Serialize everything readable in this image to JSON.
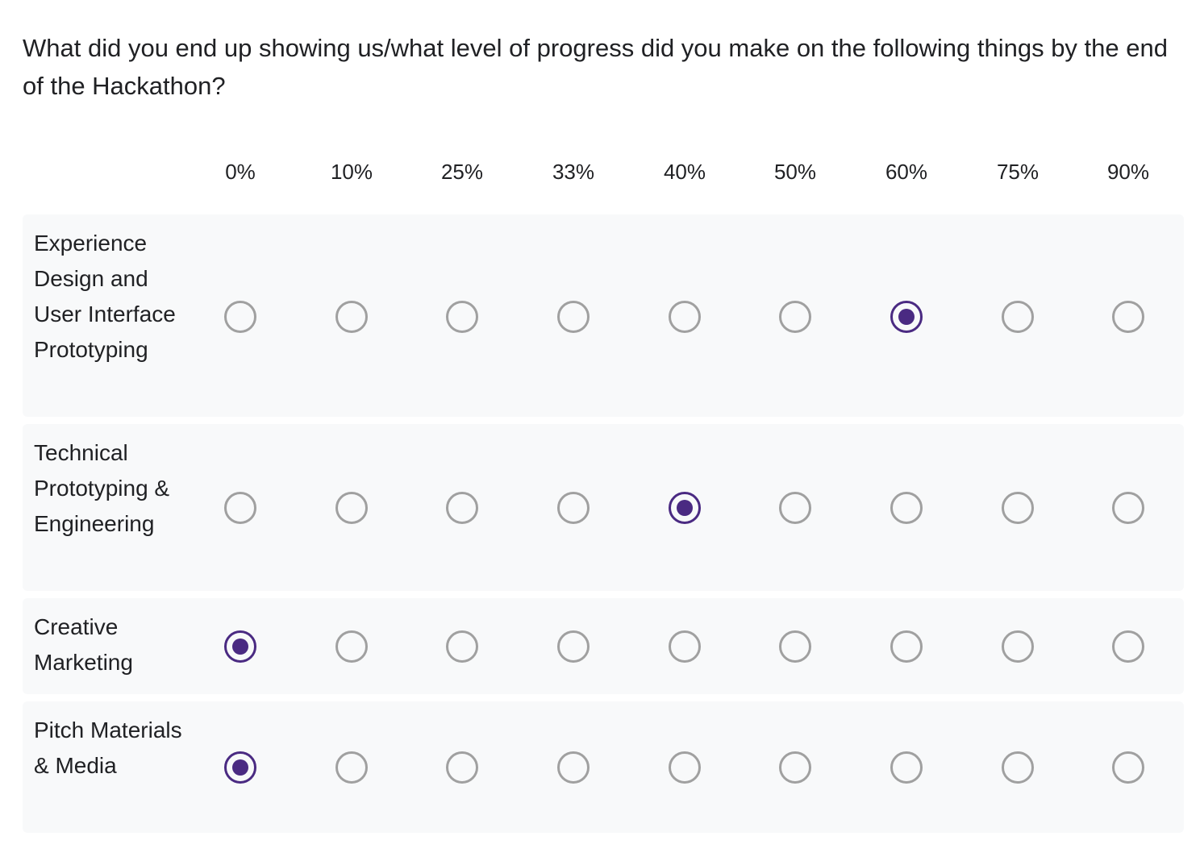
{
  "question": "What did you end up showing us/what level of progress did you make on the following things by the end of the Hackathon?",
  "columns": [
    "0%",
    "10%",
    "25%",
    "33%",
    "40%",
    "50%",
    "60%",
    "75%",
    "90%"
  ],
  "rows": [
    {
      "label": "Experience Design and User Interface Prototyping",
      "selected": "60%"
    },
    {
      "label": "Technical Prototyping & Engineering",
      "selected": "40%"
    },
    {
      "label": "Creative Marketing",
      "selected": "0%"
    },
    {
      "label": "Pitch Materials & Media",
      "selected": "0%"
    }
  ],
  "colors": {
    "accent": "#4a2a82",
    "radio_border": "#a0a0a0",
    "row_background": "#f8f9fa"
  }
}
